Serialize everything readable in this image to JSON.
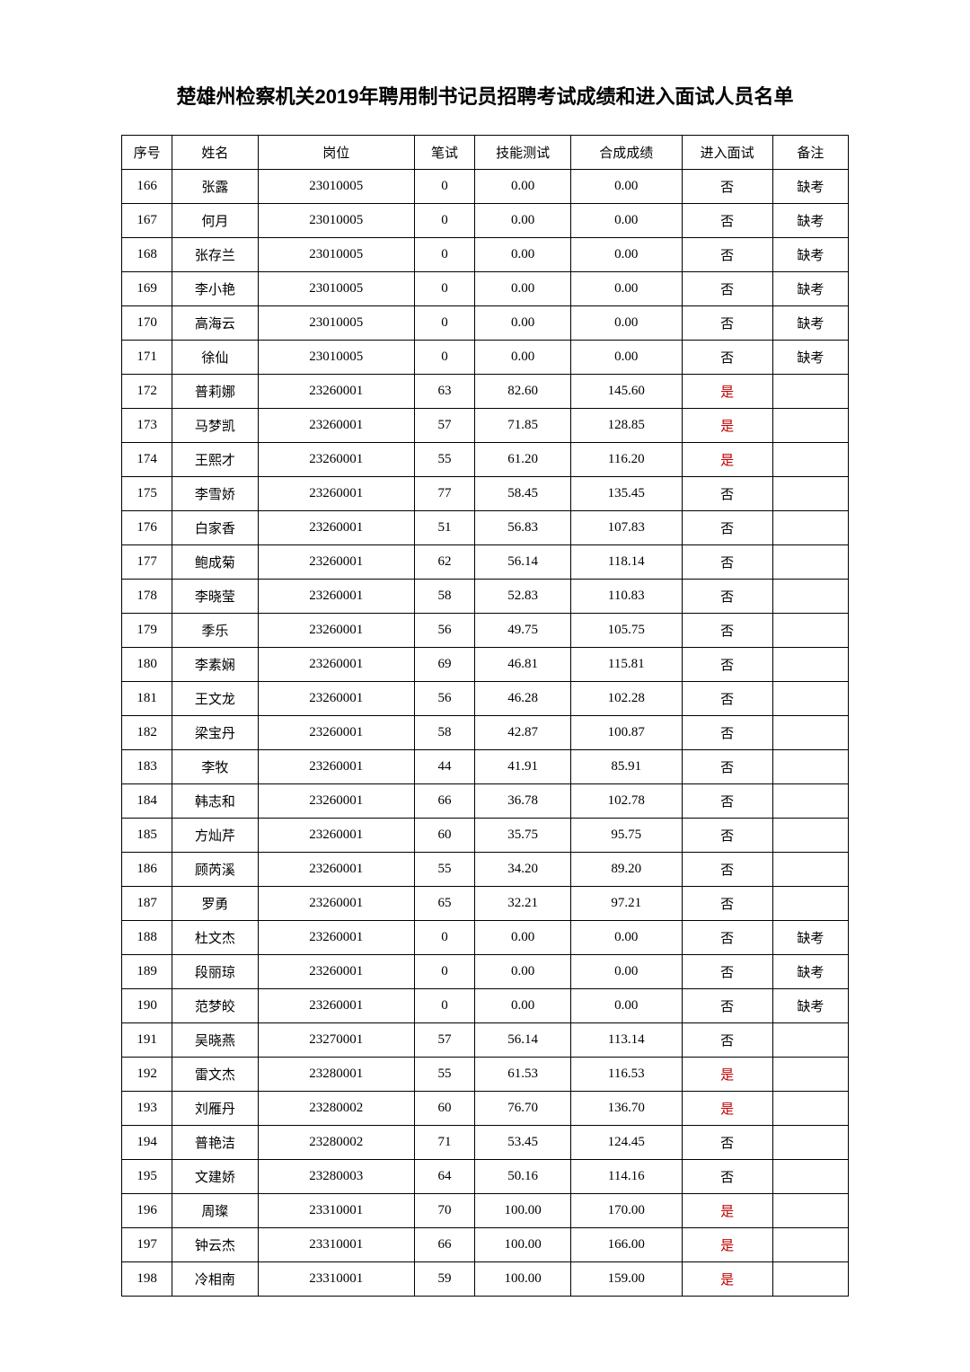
{
  "title": "楚雄州检察机关2019年聘用制书记员招聘考试成绩和进入面试人员名单",
  "headers": {
    "seq": "序号",
    "name": "姓名",
    "post": "岗位",
    "written": "笔试",
    "skill": "技能测试",
    "composite": "合成成绩",
    "interview": "进入面试",
    "remark": "备注"
  },
  "yes_color": "#c00000",
  "no_color": "#000000",
  "rows": [
    {
      "seq": "166",
      "name": "张露",
      "post": "23010005",
      "written": "0",
      "skill": "0.00",
      "composite": "0.00",
      "interview": "否",
      "remark": "缺考"
    },
    {
      "seq": "167",
      "name": "何月",
      "post": "23010005",
      "written": "0",
      "skill": "0.00",
      "composite": "0.00",
      "interview": "否",
      "remark": "缺考"
    },
    {
      "seq": "168",
      "name": "张存兰",
      "post": "23010005",
      "written": "0",
      "skill": "0.00",
      "composite": "0.00",
      "interview": "否",
      "remark": "缺考"
    },
    {
      "seq": "169",
      "name": "李小艳",
      "post": "23010005",
      "written": "0",
      "skill": "0.00",
      "composite": "0.00",
      "interview": "否",
      "remark": "缺考"
    },
    {
      "seq": "170",
      "name": "高海云",
      "post": "23010005",
      "written": "0",
      "skill": "0.00",
      "composite": "0.00",
      "interview": "否",
      "remark": "缺考"
    },
    {
      "seq": "171",
      "name": "徐仙",
      "post": "23010005",
      "written": "0",
      "skill": "0.00",
      "composite": "0.00",
      "interview": "否",
      "remark": "缺考"
    },
    {
      "seq": "172",
      "name": "普莉娜",
      "post": "23260001",
      "written": "63",
      "skill": "82.60",
      "composite": "145.60",
      "interview": "是",
      "remark": ""
    },
    {
      "seq": "173",
      "name": "马梦凯",
      "post": "23260001",
      "written": "57",
      "skill": "71.85",
      "composite": "128.85",
      "interview": "是",
      "remark": ""
    },
    {
      "seq": "174",
      "name": "王熙才",
      "post": "23260001",
      "written": "55",
      "skill": "61.20",
      "composite": "116.20",
      "interview": "是",
      "remark": ""
    },
    {
      "seq": "175",
      "name": "李雪娇",
      "post": "23260001",
      "written": "77",
      "skill": "58.45",
      "composite": "135.45",
      "interview": "否",
      "remark": ""
    },
    {
      "seq": "176",
      "name": "白家香",
      "post": "23260001",
      "written": "51",
      "skill": "56.83",
      "composite": "107.83",
      "interview": "否",
      "remark": ""
    },
    {
      "seq": "177",
      "name": "鲍成菊",
      "post": "23260001",
      "written": "62",
      "skill": "56.14",
      "composite": "118.14",
      "interview": "否",
      "remark": ""
    },
    {
      "seq": "178",
      "name": "李晓莹",
      "post": "23260001",
      "written": "58",
      "skill": "52.83",
      "composite": "110.83",
      "interview": "否",
      "remark": ""
    },
    {
      "seq": "179",
      "name": "季乐",
      "post": "23260001",
      "written": "56",
      "skill": "49.75",
      "composite": "105.75",
      "interview": "否",
      "remark": ""
    },
    {
      "seq": "180",
      "name": "李素娴",
      "post": "23260001",
      "written": "69",
      "skill": "46.81",
      "composite": "115.81",
      "interview": "否",
      "remark": ""
    },
    {
      "seq": "181",
      "name": "王文龙",
      "post": "23260001",
      "written": "56",
      "skill": "46.28",
      "composite": "102.28",
      "interview": "否",
      "remark": ""
    },
    {
      "seq": "182",
      "name": "梁宝丹",
      "post": "23260001",
      "written": "58",
      "skill": "42.87",
      "composite": "100.87",
      "interview": "否",
      "remark": ""
    },
    {
      "seq": "183",
      "name": "李牧",
      "post": "23260001",
      "written": "44",
      "skill": "41.91",
      "composite": "85.91",
      "interview": "否",
      "remark": ""
    },
    {
      "seq": "184",
      "name": "韩志和",
      "post": "23260001",
      "written": "66",
      "skill": "36.78",
      "composite": "102.78",
      "interview": "否",
      "remark": ""
    },
    {
      "seq": "185",
      "name": "方灿芹",
      "post": "23260001",
      "written": "60",
      "skill": "35.75",
      "composite": "95.75",
      "interview": "否",
      "remark": ""
    },
    {
      "seq": "186",
      "name": "顾芮溪",
      "post": "23260001",
      "written": "55",
      "skill": "34.20",
      "composite": "89.20",
      "interview": "否",
      "remark": ""
    },
    {
      "seq": "187",
      "name": "罗勇",
      "post": "23260001",
      "written": "65",
      "skill": "32.21",
      "composite": "97.21",
      "interview": "否",
      "remark": ""
    },
    {
      "seq": "188",
      "name": "杜文杰",
      "post": "23260001",
      "written": "0",
      "skill": "0.00",
      "composite": "0.00",
      "interview": "否",
      "remark": "缺考"
    },
    {
      "seq": "189",
      "name": "段丽琼",
      "post": "23260001",
      "written": "0",
      "skill": "0.00",
      "composite": "0.00",
      "interview": "否",
      "remark": "缺考"
    },
    {
      "seq": "190",
      "name": "范梦皎",
      "post": "23260001",
      "written": "0",
      "skill": "0.00",
      "composite": "0.00",
      "interview": "否",
      "remark": "缺考"
    },
    {
      "seq": "191",
      "name": "吴晓燕",
      "post": "23270001",
      "written": "57",
      "skill": "56.14",
      "composite": "113.14",
      "interview": "否",
      "remark": ""
    },
    {
      "seq": "192",
      "name": "雷文杰",
      "post": "23280001",
      "written": "55",
      "skill": "61.53",
      "composite": "116.53",
      "interview": "是",
      "remark": ""
    },
    {
      "seq": "193",
      "name": "刘雁丹",
      "post": "23280002",
      "written": "60",
      "skill": "76.70",
      "composite": "136.70",
      "interview": "是",
      "remark": ""
    },
    {
      "seq": "194",
      "name": "普艳洁",
      "post": "23280002",
      "written": "71",
      "skill": "53.45",
      "composite": "124.45",
      "interview": "否",
      "remark": ""
    },
    {
      "seq": "195",
      "name": "文建娇",
      "post": "23280003",
      "written": "64",
      "skill": "50.16",
      "composite": "114.16",
      "interview": "否",
      "remark": ""
    },
    {
      "seq": "196",
      "name": "周璨",
      "post": "23310001",
      "written": "70",
      "skill": "100.00",
      "composite": "170.00",
      "interview": "是",
      "remark": ""
    },
    {
      "seq": "197",
      "name": "钟云杰",
      "post": "23310001",
      "written": "66",
      "skill": "100.00",
      "composite": "166.00",
      "interview": "是",
      "remark": ""
    },
    {
      "seq": "198",
      "name": "冷相南",
      "post": "23310001",
      "written": "59",
      "skill": "100.00",
      "composite": "159.00",
      "interview": "是",
      "remark": ""
    }
  ]
}
